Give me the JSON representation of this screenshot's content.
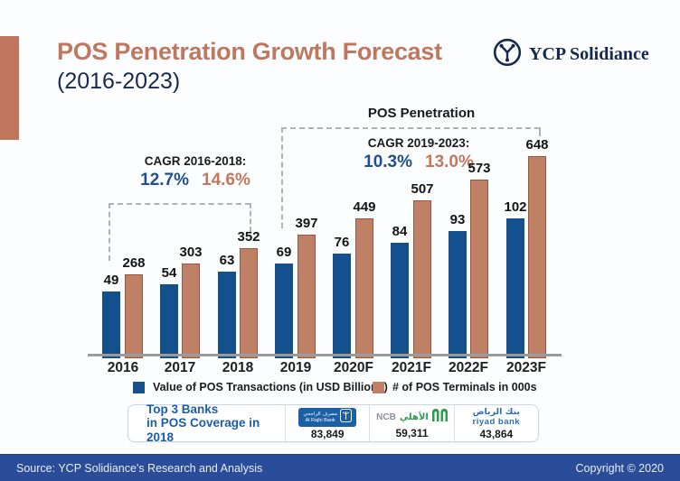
{
  "header": {
    "title": "POS Penetration Growth Forecast",
    "subtitle": "(2016-2023)",
    "logo_text": "YCP Solidiance"
  },
  "colors": {
    "accent_salmon": "#c0765c",
    "title_salmon": "#bf7860",
    "navy": "#16294d",
    "bar_blue": "#14508d",
    "bar_salmon_fill": "#c08066",
    "bar_salmon_border": "#a0523a",
    "cagr_blue": "#1d4f92",
    "cagr_salmon": "#c0785f",
    "footer_blue": "#2a4c99",
    "banks_title_blue": "#1c5da8"
  },
  "chart_data": {
    "type": "bar",
    "title": "POS Penetration",
    "categories": [
      "2016",
      "2017",
      "2018",
      "2019",
      "2020F",
      "2021F",
      "2022F",
      "2023F"
    ],
    "series": [
      {
        "name": "Value of POS Transactions (in USD Billions)",
        "color": "#14508d",
        "values": [
          49,
          54,
          63,
          69,
          76,
          84,
          93,
          102
        ]
      },
      {
        "name": "# of POS Terminals in 000s",
        "color": "#c08066",
        "border_color": "#a0523a",
        "values": [
          268,
          303,
          352,
          397,
          449,
          507,
          573,
          648
        ]
      }
    ],
    "annotations": [
      {
        "label": "CAGR 2016-2018:",
        "blue_value": "12.7%",
        "salmon_value": "14.6%",
        "bracket_categories": [
          "2016",
          "2018"
        ]
      },
      {
        "label": "CAGR 2019-2023:",
        "blue_value": "10.3%",
        "salmon_value": "13.0%",
        "bracket_categories": [
          "2019",
          "2023F"
        ]
      }
    ],
    "grid": false,
    "legend_position": "bottom",
    "value_labels": "above-bars"
  },
  "banks": {
    "title_line1": "Top 3 Banks",
    "title_line2": "in POS Coverage in 2018",
    "items": [
      {
        "name": "Al Rajhi Bank",
        "arabic": "مصرف الراجحي",
        "latin": "Al Rajhi Bank",
        "value": "83,849"
      },
      {
        "name": "NCB Al Ahli",
        "latin": "NCB",
        "arabic": "الأهلي",
        "value": "59,311"
      },
      {
        "name": "Riyad Bank",
        "arabic": "بنك الرياض",
        "latin": "riyad bank",
        "value": "43,864"
      }
    ]
  },
  "footer": {
    "source": "Source: YCP Solidiance's Research and Analysis",
    "copyright": "Copyright © 2020"
  }
}
